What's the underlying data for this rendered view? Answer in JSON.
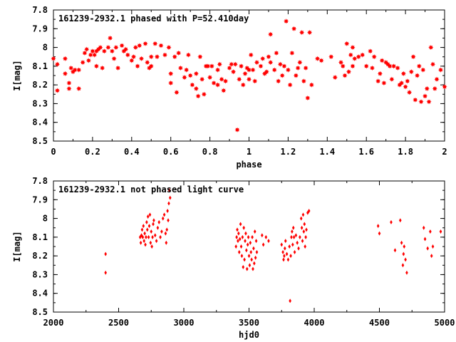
{
  "chart_data": [
    {
      "type": "scatter",
      "title": "161239-2932.1 phased with P=52.410day",
      "xlabel": "phase",
      "ylabel": "I[mag]",
      "xlim": [
        0,
        2
      ],
      "ylim": [
        7.8,
        8.5
      ],
      "y_inverted": true,
      "xticks": [
        "0",
        "0.2",
        "0.4",
        "0.6",
        "0.8",
        "1",
        "1.2",
        "1.4",
        "1.6",
        "1.8",
        "2"
      ],
      "xtick_values": [
        0,
        0.2,
        0.4,
        0.6,
        0.8,
        1,
        1.2,
        1.4,
        1.6,
        1.8,
        2
      ],
      "yticks": [
        "7.8",
        "7.9",
        "8",
        "8.1",
        "8.2",
        "8.3",
        "8.4",
        "8.5"
      ],
      "ytick_values": [
        7.8,
        7.9,
        8.0,
        8.1,
        8.2,
        8.3,
        8.4,
        8.5
      ],
      "marker_color": "#ff0000",
      "points": [
        [
          0.0,
          8.06
        ],
        [
          0.02,
          8.23
        ],
        [
          0.02,
          8.09
        ],
        [
          0.06,
          8.06
        ],
        [
          0.06,
          8.14
        ],
        [
          0.08,
          8.22
        ],
        [
          0.08,
          8.19
        ],
        [
          0.09,
          8.11
        ],
        [
          0.1,
          8.13
        ],
        [
          0.11,
          8.12
        ],
        [
          0.13,
          8.22
        ],
        [
          0.13,
          8.12
        ],
        [
          0.15,
          8.08
        ],
        [
          0.16,
          8.03
        ],
        [
          0.17,
          8.01
        ],
        [
          0.18,
          8.07
        ],
        [
          0.19,
          8.04
        ],
        [
          0.2,
          8.02
        ],
        [
          0.21,
          8.04
        ],
        [
          0.22,
          8.02
        ],
        [
          0.22,
          8.1
        ],
        [
          0.23,
          8.01
        ],
        [
          0.24,
          8.0
        ],
        [
          0.25,
          8.11
        ],
        [
          0.26,
          8.02
        ],
        [
          0.28,
          8.0
        ],
        [
          0.29,
          7.95
        ],
        [
          0.3,
          8.02
        ],
        [
          0.31,
          8.06
        ],
        [
          0.32,
          8.0
        ],
        [
          0.33,
          8.11
        ],
        [
          0.35,
          7.99
        ],
        [
          0.36,
          8.02
        ],
        [
          0.37,
          8.01
        ],
        [
          0.38,
          8.04
        ],
        [
          0.4,
          8.07
        ],
        [
          0.41,
          8.05
        ],
        [
          0.42,
          8.0
        ],
        [
          0.43,
          8.1
        ],
        [
          0.44,
          7.99
        ],
        [
          0.45,
          8.06
        ],
        [
          0.47,
          7.98
        ],
        [
          0.48,
          8.08
        ],
        [
          0.49,
          8.11
        ],
        [
          0.5,
          8.05
        ],
        [
          0.5,
          8.1
        ],
        [
          0.52,
          7.98
        ],
        [
          0.53,
          8.05
        ],
        [
          0.55,
          7.99
        ],
        [
          0.57,
          8.04
        ],
        [
          0.59,
          8.0
        ],
        [
          0.6,
          8.14
        ],
        [
          0.6,
          8.19
        ],
        [
          0.62,
          8.05
        ],
        [
          0.63,
          8.24
        ],
        [
          0.64,
          8.03
        ],
        [
          0.65,
          8.11
        ],
        [
          0.67,
          8.16
        ],
        [
          0.68,
          8.12
        ],
        [
          0.69,
          8.04
        ],
        [
          0.7,
          8.15
        ],
        [
          0.71,
          8.2
        ],
        [
          0.73,
          8.14
        ],
        [
          0.73,
          8.22
        ],
        [
          0.74,
          8.26
        ],
        [
          0.75,
          8.05
        ],
        [
          0.76,
          8.17
        ],
        [
          0.77,
          8.25
        ],
        [
          0.78,
          8.1
        ],
        [
          0.79,
          8.1
        ],
        [
          0.8,
          8.16
        ],
        [
          0.81,
          8.1
        ],
        [
          0.82,
          8.19
        ],
        [
          0.84,
          8.2
        ],
        [
          0.84,
          8.12
        ],
        [
          0.85,
          8.09
        ],
        [
          0.86,
          8.17
        ],
        [
          0.87,
          8.23
        ],
        [
          0.88,
          8.18
        ],
        [
          0.9,
          8.11
        ],
        [
          0.91,
          8.09
        ],
        [
          0.92,
          8.13
        ],
        [
          0.93,
          8.09
        ],
        [
          0.94,
          8.44
        ],
        [
          0.95,
          8.17
        ],
        [
          0.96,
          8.1
        ],
        [
          0.97,
          8.2
        ],
        [
          0.98,
          8.14
        ],
        [
          0.99,
          8.11
        ],
        [
          1.0,
          8.12
        ],
        [
          1.0,
          8.17
        ],
        [
          1.01,
          8.04
        ],
        [
          1.02,
          8.12
        ],
        [
          1.03,
          8.18
        ],
        [
          1.04,
          8.08
        ],
        [
          1.06,
          8.1
        ],
        [
          1.07,
          8.06
        ],
        [
          1.08,
          8.14
        ],
        [
          1.09,
          8.13
        ],
        [
          1.1,
          8.05
        ],
        [
          1.11,
          8.08
        ],
        [
          1.11,
          7.93
        ],
        [
          1.13,
          8.12
        ],
        [
          1.14,
          8.03
        ],
        [
          1.15,
          8.18
        ],
        [
          1.16,
          8.09
        ],
        [
          1.17,
          8.15
        ],
        [
          1.18,
          8.1
        ],
        [
          1.19,
          7.86
        ],
        [
          1.2,
          8.12
        ],
        [
          1.21,
          8.2
        ],
        [
          1.22,
          8.03
        ],
        [
          1.23,
          7.9
        ],
        [
          1.24,
          8.15
        ],
        [
          1.25,
          8.11
        ],
        [
          1.26,
          8.08
        ],
        [
          1.27,
          7.92
        ],
        [
          1.28,
          8.18
        ],
        [
          1.29,
          8.11
        ],
        [
          1.3,
          8.27
        ],
        [
          1.31,
          7.92
        ],
        [
          1.32,
          8.2
        ],
        [
          1.35,
          8.06
        ],
        [
          1.37,
          8.07
        ],
        [
          1.42,
          8.05
        ],
        [
          1.44,
          8.16
        ],
        [
          1.47,
          8.08
        ],
        [
          1.48,
          8.1
        ],
        [
          1.49,
          8.15
        ],
        [
          1.5,
          7.98
        ],
        [
          1.51,
          8.13
        ],
        [
          1.52,
          8.04
        ],
        [
          1.53,
          8.1
        ],
        [
          1.53,
          8.0
        ],
        [
          1.54,
          8.06
        ],
        [
          1.56,
          8.05
        ],
        [
          1.58,
          8.04
        ],
        [
          1.6,
          8.1
        ],
        [
          1.62,
          8.02
        ],
        [
          1.63,
          8.11
        ],
        [
          1.64,
          8.05
        ],
        [
          1.66,
          8.18
        ],
        [
          1.67,
          8.14
        ],
        [
          1.68,
          8.07
        ],
        [
          1.69,
          8.19
        ],
        [
          1.7,
          8.08
        ],
        [
          1.71,
          8.09
        ],
        [
          1.72,
          8.1
        ],
        [
          1.73,
          8.17
        ],
        [
          1.74,
          8.1
        ],
        [
          1.76,
          8.11
        ],
        [
          1.77,
          8.2
        ],
        [
          1.78,
          8.19
        ],
        [
          1.79,
          8.14
        ],
        [
          1.8,
          8.21
        ],
        [
          1.81,
          8.18
        ],
        [
          1.82,
          8.24
        ],
        [
          1.83,
          8.13
        ],
        [
          1.84,
          8.05
        ],
        [
          1.85,
          8.28
        ],
        [
          1.86,
          8.15
        ],
        [
          1.87,
          8.1
        ],
        [
          1.88,
          8.29
        ],
        [
          1.89,
          8.12
        ],
        [
          1.9,
          8.26
        ],
        [
          1.91,
          8.22
        ],
        [
          1.92,
          8.29
        ],
        [
          1.93,
          8.0
        ],
        [
          1.94,
          8.09
        ],
        [
          1.95,
          8.22
        ],
        [
          1.96,
          8.17
        ],
        [
          1.98,
          8.12
        ],
        [
          2.0,
          8.21
        ]
      ]
    },
    {
      "type": "scatter",
      "title": "161239-2932.1 not phased light curve",
      "xlabel": "hjd0",
      "ylabel": "I[mag]",
      "xlim": [
        2000,
        5000
      ],
      "ylim": [
        7.8,
        8.5
      ],
      "y_inverted": true,
      "xticks": [
        "2000",
        "2500",
        "3000",
        "3500",
        "4000",
        "4500",
        "5000"
      ],
      "xtick_values": [
        2000,
        2500,
        3000,
        3500,
        4000,
        4500,
        5000
      ],
      "yticks": [
        "7.8",
        "7.9",
        "8",
        "8.1",
        "8.2",
        "8.3",
        "8.4",
        "8.5"
      ],
      "ytick_values": [
        7.8,
        7.9,
        8.0,
        8.1,
        8.2,
        8.3,
        8.4,
        8.5
      ],
      "marker_color": "#ff0000",
      "points": [
        [
          2400,
          8.19
        ],
        [
          2400,
          8.29
        ],
        [
          2665,
          8.1
        ],
        [
          2670,
          8.13
        ],
        [
          2675,
          8.09
        ],
        [
          2680,
          8.06
        ],
        [
          2685,
          8.1
        ],
        [
          2690,
          8.04
        ],
        [
          2695,
          8.12
        ],
        [
          2700,
          8.08
        ],
        [
          2705,
          8.14
        ],
        [
          2710,
          8.1
        ],
        [
          2715,
          8.02
        ],
        [
          2720,
          8.06
        ],
        [
          2725,
          7.99
        ],
        [
          2730,
          8.1
        ],
        [
          2735,
          8.04
        ],
        [
          2740,
          7.98
        ],
        [
          2745,
          8.13
        ],
        [
          2750,
          8.07
        ],
        [
          2755,
          8.15
        ],
        [
          2760,
          8.1
        ],
        [
          2765,
          8.03
        ],
        [
          2770,
          8.01
        ],
        [
          2780,
          8.09
        ],
        [
          2790,
          8.12
        ],
        [
          2800,
          8.05
        ],
        [
          2810,
          8.02
        ],
        [
          2820,
          8.1
        ],
        [
          2830,
          8.07
        ],
        [
          2840,
          8.0
        ],
        [
          2850,
          7.98
        ],
        [
          2860,
          8.08
        ],
        [
          2865,
          8.13
        ],
        [
          2870,
          8.06
        ],
        [
          2875,
          7.96
        ],
        [
          2880,
          8.01
        ],
        [
          2885,
          7.92
        ],
        [
          2890,
          7.85
        ],
        [
          2895,
          7.89
        ],
        [
          3400,
          8.15
        ],
        [
          3405,
          8.1
        ],
        [
          3410,
          8.06
        ],
        [
          3415,
          8.12
        ],
        [
          3420,
          8.08
        ],
        [
          3425,
          8.18
        ],
        [
          3430,
          8.11
        ],
        [
          3435,
          8.03
        ],
        [
          3440,
          8.15
        ],
        [
          3445,
          8.2
        ],
        [
          3450,
          8.1
        ],
        [
          3455,
          8.26
        ],
        [
          3460,
          8.05
        ],
        [
          3465,
          8.22
        ],
        [
          3470,
          8.12
        ],
        [
          3475,
          8.08
        ],
        [
          3480,
          8.17
        ],
        [
          3485,
          8.27
        ],
        [
          3490,
          8.14
        ],
        [
          3495,
          8.1
        ],
        [
          3500,
          8.2
        ],
        [
          3505,
          8.25
        ],
        [
          3510,
          8.13
        ],
        [
          3515,
          8.18
        ],
        [
          3520,
          8.22
        ],
        [
          3525,
          8.1
        ],
        [
          3530,
          8.27
        ],
        [
          3535,
          8.16
        ],
        [
          3540,
          8.24
        ],
        [
          3545,
          8.07
        ],
        [
          3550,
          8.21
        ],
        [
          3555,
          8.12
        ],
        [
          3560,
          8.18
        ],
        [
          3600,
          8.09
        ],
        [
          3610,
          8.14
        ],
        [
          3630,
          8.1
        ],
        [
          3650,
          8.12
        ],
        [
          3750,
          8.14
        ],
        [
          3760,
          8.18
        ],
        [
          3765,
          8.22
        ],
        [
          3770,
          8.2
        ],
        [
          3775,
          8.16
        ],
        [
          3780,
          8.12
        ],
        [
          3790,
          8.19
        ],
        [
          3800,
          8.22
        ],
        [
          3810,
          8.15
        ],
        [
          3815,
          8.44
        ],
        [
          3820,
          8.2
        ],
        [
          3825,
          8.1
        ],
        [
          3830,
          8.07
        ],
        [
          3835,
          8.14
        ],
        [
          3840,
          8.05
        ],
        [
          3845,
          8.1
        ],
        [
          3850,
          8.18
        ],
        [
          3860,
          8.09
        ],
        [
          3870,
          8.13
        ],
        [
          3880,
          8.16
        ],
        [
          3890,
          8.1
        ],
        [
          3900,
          8.0
        ],
        [
          3905,
          8.05
        ],
        [
          3910,
          8.12
        ],
        [
          3915,
          7.98
        ],
        [
          3920,
          8.07
        ],
        [
          3925,
          8.03
        ],
        [
          3930,
          8.15
        ],
        [
          3935,
          8.1
        ],
        [
          3940,
          8.06
        ],
        [
          3950,
          7.97
        ],
        [
          3960,
          7.96
        ],
        [
          4490,
          8.04
        ],
        [
          4500,
          8.08
        ],
        [
          4590,
          8.02
        ],
        [
          4620,
          8.17
        ],
        [
          4660,
          8.01
        ],
        [
          4670,
          8.13
        ],
        [
          4680,
          8.25
        ],
        [
          4685,
          8.19
        ],
        [
          4690,
          8.15
        ],
        [
          4700,
          8.22
        ],
        [
          4710,
          8.29
        ],
        [
          4840,
          8.05
        ],
        [
          4850,
          8.11
        ],
        [
          4870,
          8.16
        ],
        [
          4890,
          8.07
        ],
        [
          4900,
          8.2
        ],
        [
          4910,
          8.15
        ],
        [
          4970,
          8.07
        ]
      ]
    }
  ]
}
